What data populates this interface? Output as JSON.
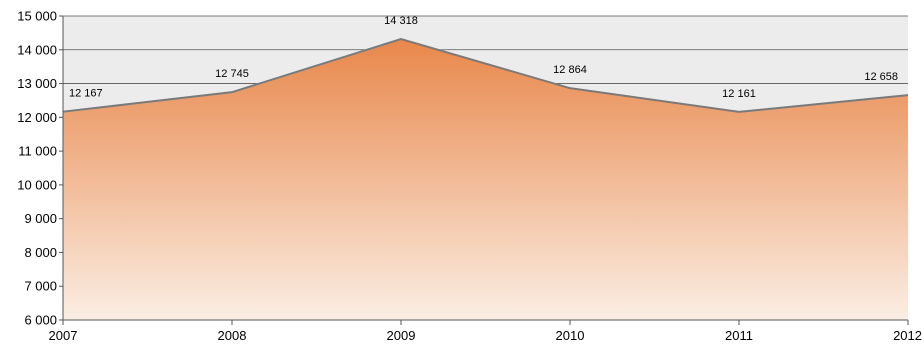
{
  "chart_data": {
    "type": "area",
    "title": "",
    "xlabel": "",
    "ylabel": "",
    "categories": [
      "2007",
      "2008",
      "2009",
      "2010",
      "2011",
      "2012"
    ],
    "series": [
      {
        "values": [
          12167,
          12745,
          14318,
          12864,
          12161,
          12658
        ]
      }
    ],
    "data_labels": [
      "12 167",
      "12 745",
      "14 318",
      "12 864",
      "12 161",
      "12 658"
    ],
    "ylim": [
      6000,
      15000
    ],
    "yticks": [
      6000,
      7000,
      8000,
      9000,
      10000,
      11000,
      12000,
      13000,
      14000,
      15000
    ],
    "ytick_labels": [
      "6 000",
      "7 000",
      "8 000",
      "9 000",
      "10 000",
      "11 000",
      "12 000",
      "13 000",
      "14 000",
      "15 000"
    ],
    "grid": true,
    "legend": "none",
    "colors": {
      "plot_background": "#ececec",
      "gridline": "#555555",
      "area_top": "#e8874a",
      "area_bottom": "#fbeee4",
      "line": "#7a7a7a"
    }
  }
}
